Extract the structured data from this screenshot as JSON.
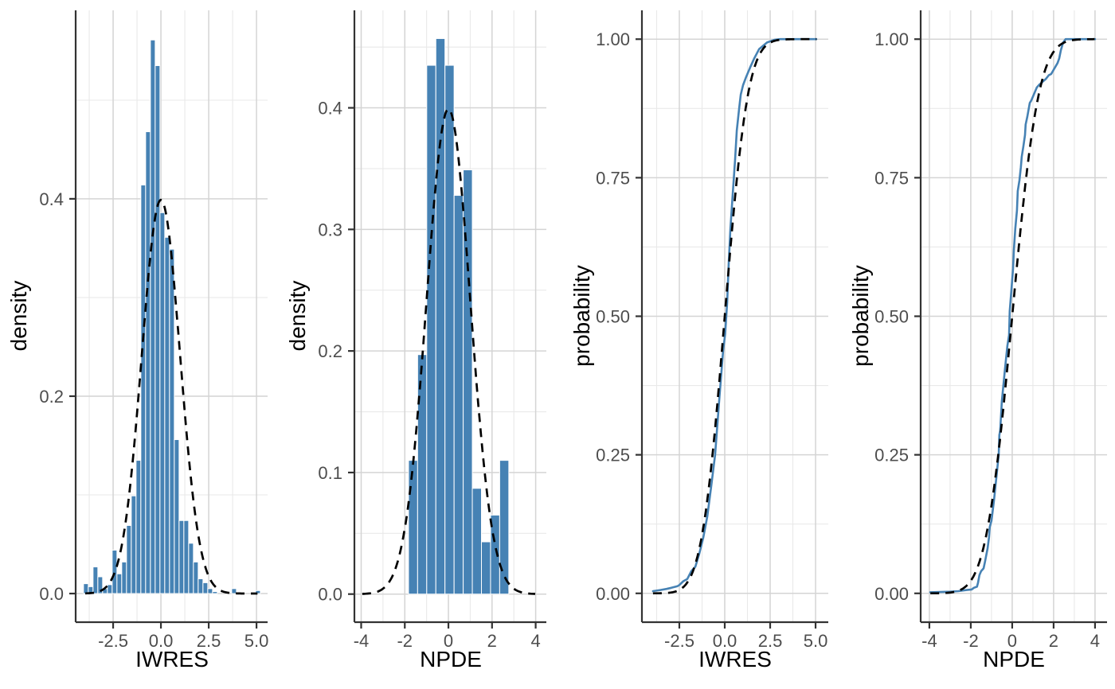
{
  "style": {
    "background": "#ffffff",
    "bar_fill": "#4682B4",
    "bar_stroke": "#ffffff",
    "ecdf_color": "#4682B4",
    "ref_color": "#000000",
    "grid_major": "#D4D4D4",
    "grid_minor": "#E9E9E9",
    "axis_color": "#333333",
    "tick_label_color": "#4D4D4D",
    "title_color": "#000000"
  },
  "chart_data": [
    {
      "id": "iwres-histogram",
      "type": "bar",
      "xlabel": "IWRES",
      "ylabel": "density",
      "xlim": [
        -4.46,
        5.58
      ],
      "ylim": [
        -0.029,
        0.591
      ],
      "x_ticks": [
        -2.5,
        0,
        2.5,
        5
      ],
      "x_tick_labels": [
        "-2.5",
        "0.0",
        "2.5",
        "5.0"
      ],
      "x_minor": [
        -3.75,
        -1.25,
        1.25,
        3.75
      ],
      "y_ticks": [
        0,
        0.2,
        0.4
      ],
      "y_tick_labels": [
        "0.0",
        "0.2",
        "0.4"
      ],
      "y_minor": [
        0.1,
        0.3,
        0.5
      ],
      "grid": true,
      "legend": false,
      "hist": {
        "bin_start": -4.05,
        "bin_width": 0.25,
        "heights": [
          0.01,
          0.007,
          0.027,
          0.017,
          0.005,
          0.009,
          0.044,
          0.02,
          0.032,
          0.069,
          0.099,
          0.135,
          0.414,
          0.468,
          0.561,
          0.535,
          0.386,
          0.361,
          0.349,
          0.156,
          0.074,
          0.074,
          0.051,
          0.032,
          0.015,
          0.011,
          0.005,
          0.002,
          0,
          0,
          0,
          0.005,
          0,
          0,
          0,
          0,
          0.003,
          0
        ]
      },
      "ref_curve": {
        "kind": "normal_pdf",
        "mean": 0,
        "sd": 1,
        "range": [
          -3.96,
          5.05
        ]
      }
    },
    {
      "id": "npde-histogram",
      "type": "bar",
      "xlabel": "NPDE",
      "ylabel": "density",
      "xlim": [
        -4.31,
        4.49
      ],
      "ylim": [
        -0.0231,
        0.4802
      ],
      "x_ticks": [
        -4,
        -2,
        0,
        2,
        4
      ],
      "x_tick_labels": [
        "-4",
        "-2",
        "0",
        "2",
        "4"
      ],
      "x_minor": [
        -3,
        -1,
        1,
        3
      ],
      "y_ticks": [
        0,
        0.1,
        0.2,
        0.3,
        0.4
      ],
      "y_tick_labels": [
        "0.0",
        "0.1",
        "0.2",
        "0.3",
        "0.4"
      ],
      "y_minor": [
        0.05,
        0.15,
        0.25,
        0.35,
        0.45
      ],
      "grid": true,
      "legend": false,
      "hist": {
        "bin_start": -1.83,
        "bin_width": 0.418,
        "heights": [
          0.11,
          0.197,
          0.435,
          0.457,
          0.435,
          0.328,
          0.349,
          0.087,
          0.043,
          0.065,
          0.11
        ]
      },
      "ref_curve": {
        "kind": "normal_pdf",
        "mean": 0,
        "sd": 1,
        "range": [
          -3.95,
          3.98
        ]
      }
    },
    {
      "id": "iwres-ecdf",
      "type": "line",
      "xlabel": "IWRES",
      "ylabel": "probability",
      "xlim": [
        -4.56,
        5.7
      ],
      "ylim": [
        -0.052,
        1.052
      ],
      "x_ticks": [
        -2.5,
        0,
        2.5,
        5
      ],
      "x_tick_labels": [
        "-2.5",
        "0.0",
        "2.5",
        "5.0"
      ],
      "x_minor": [
        -3.75,
        -1.25,
        1.25,
        3.75
      ],
      "y_ticks": [
        0,
        0.25,
        0.5,
        0.75,
        1
      ],
      "y_tick_labels": [
        "0.00",
        "0.25",
        "0.50",
        "0.75",
        "1.00"
      ],
      "y_minor": [
        0.125,
        0.375,
        0.625,
        0.875
      ],
      "grid": true,
      "legend": false,
      "ecdf_points": [
        [
          -3.95,
          0.004
        ],
        [
          -3.55,
          0.006
        ],
        [
          -3.2,
          0.008
        ],
        [
          -2.94,
          0.01
        ],
        [
          -2.6,
          0.013
        ],
        [
          -2.5,
          0.015
        ],
        [
          -2.28,
          0.022
        ],
        [
          -2.06,
          0.026
        ],
        [
          -1.84,
          0.04
        ],
        [
          -1.62,
          0.048
        ],
        [
          -1.4,
          0.072
        ],
        [
          -1.18,
          0.101
        ],
        [
          -0.96,
          0.139
        ],
        [
          -0.75,
          0.192
        ],
        [
          -0.53,
          0.25
        ],
        [
          -0.31,
          0.346
        ],
        [
          -0.09,
          0.437
        ],
        [
          0.02,
          0.468
        ],
        [
          0.13,
          0.524
        ],
        [
          0.22,
          0.596
        ],
        [
          0.31,
          0.658
        ],
        [
          0.44,
          0.72
        ],
        [
          0.57,
          0.783
        ],
        [
          0.66,
          0.835
        ],
        [
          0.79,
          0.874
        ],
        [
          0.88,
          0.9
        ],
        [
          1.01,
          0.917
        ],
        [
          1.18,
          0.932
        ],
        [
          1.4,
          0.949
        ],
        [
          1.62,
          0.965
        ],
        [
          1.89,
          0.982
        ],
        [
          2.33,
          0.994
        ],
        [
          2.76,
          0.999
        ],
        [
          3.05,
          1.0
        ],
        [
          5.04,
          1.0
        ]
      ],
      "ref_curve": {
        "kind": "normal_cdf",
        "mean": 0,
        "sd": 1,
        "range": [
          -3.95,
          5.05
        ]
      }
    },
    {
      "id": "npde-ecdf",
      "type": "line",
      "xlabel": "NPDE",
      "ylabel": "probability",
      "xlim": [
        -4.42,
        4.58
      ],
      "ylim": [
        -0.052,
        1.052
      ],
      "x_ticks": [
        -4,
        -2,
        0,
        2,
        4
      ],
      "x_tick_labels": [
        "-4",
        "-2",
        "0",
        "2",
        "4"
      ],
      "x_minor": [
        -3,
        -1,
        1,
        3
      ],
      "y_ticks": [
        0,
        0.25,
        0.5,
        0.75,
        1
      ],
      "y_tick_labels": [
        "0.00",
        "0.25",
        "0.50",
        "0.75",
        "1.00"
      ],
      "y_minor": [
        0.125,
        0.375,
        0.625,
        0.875
      ],
      "grid": true,
      "legend": false,
      "ecdf_points": [
        [
          -3.96,
          0.002
        ],
        [
          -3.0,
          0.003
        ],
        [
          -2.6,
          0.004
        ],
        [
          -2.2,
          0.006
        ],
        [
          -1.96,
          0.007
        ],
        [
          -1.85,
          0.01
        ],
        [
          -1.7,
          0.012
        ],
        [
          -1.65,
          0.019
        ],
        [
          -1.58,
          0.033
        ],
        [
          -1.5,
          0.04
        ],
        [
          -1.38,
          0.045
        ],
        [
          -1.31,
          0.058
        ],
        [
          -1.19,
          0.081
        ],
        [
          -1.12,
          0.101
        ],
        [
          -1.08,
          0.12
        ],
        [
          -1.0,
          0.131
        ],
        [
          -0.88,
          0.167
        ],
        [
          -0.73,
          0.221
        ],
        [
          -0.65,
          0.25
        ],
        [
          -0.62,
          0.286
        ],
        [
          -0.58,
          0.293
        ],
        [
          -0.5,
          0.346
        ],
        [
          -0.35,
          0.404
        ],
        [
          -0.23,
          0.447
        ],
        [
          -0.15,
          0.466
        ],
        [
          -0.12,
          0.509
        ],
        [
          -0.04,
          0.547
        ],
        [
          0.04,
          0.586
        ],
        [
          0.08,
          0.619
        ],
        [
          0.15,
          0.658
        ],
        [
          0.23,
          0.691
        ],
        [
          0.27,
          0.726
        ],
        [
          0.35,
          0.745
        ],
        [
          0.42,
          0.769
        ],
        [
          0.46,
          0.788
        ],
        [
          0.54,
          0.807
        ],
        [
          0.62,
          0.827
        ],
        [
          0.65,
          0.846
        ],
        [
          0.73,
          0.86
        ],
        [
          0.85,
          0.885
        ],
        [
          0.92,
          0.889
        ],
        [
          1.19,
          0.913
        ],
        [
          1.31,
          0.918
        ],
        [
          1.62,
          0.928
        ],
        [
          1.77,
          0.935
        ],
        [
          1.88,
          0.937
        ],
        [
          2.19,
          0.957
        ],
        [
          2.27,
          0.965
        ],
        [
          2.35,
          0.98
        ],
        [
          2.46,
          0.994
        ],
        [
          2.58,
          1.0
        ],
        [
          2.73,
          1.0
        ],
        [
          4.0,
          1.0
        ]
      ],
      "ref_curve": {
        "kind": "normal_cdf",
        "mean": 0,
        "sd": 1,
        "range": [
          -3.95,
          3.98
        ]
      }
    }
  ]
}
